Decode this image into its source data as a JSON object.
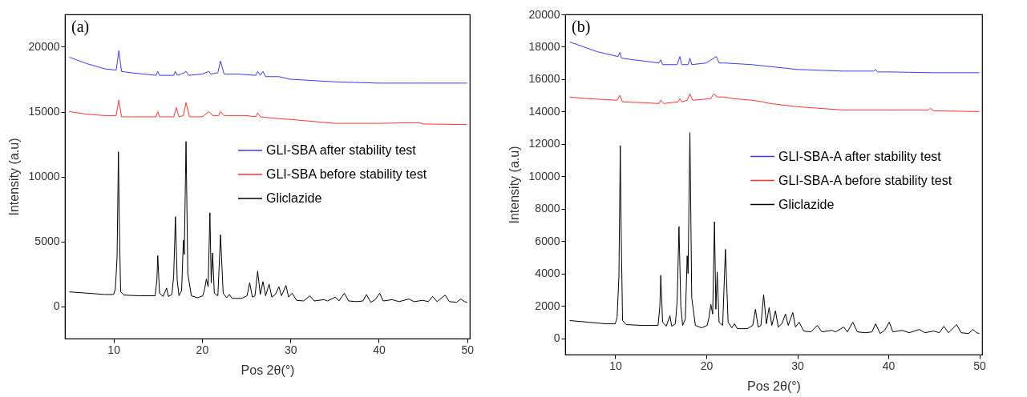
{
  "chart_data": [
    {
      "type": "line",
      "xlabel": "Pos 2θ(°)",
      "ylabel": "Intensity (a.u)",
      "xlim": [
        4.5,
        50.3
      ],
      "ylim": [
        -2500,
        22500
      ],
      "xticks": [
        10,
        20,
        30,
        40,
        50
      ],
      "yticks": [
        0,
        5000,
        10000,
        15000,
        20000
      ],
      "legend": "right",
      "annotations": [
        "(a)"
      ],
      "series": [
        {
          "name": "GLI-SBA after stability test",
          "color": "#3a3aff",
          "x": [
            5,
            7,
            9,
            10.3,
            10.6,
            10.9,
            12,
            14.8,
            15.0,
            15.2,
            16.8,
            17.0,
            17.2,
            18.0,
            18.2,
            18.5,
            20,
            20.8,
            21.0,
            21.8,
            22.1,
            22.5,
            24,
            26.1,
            26.3,
            26.6,
            26.9,
            27.2,
            28.7,
            30,
            35,
            40,
            45,
            50
          ],
          "values": [
            19200,
            18700,
            18300,
            18200,
            19700,
            18100,
            18000,
            17800,
            18100,
            17800,
            17800,
            18100,
            17800,
            18000,
            18100,
            17800,
            17900,
            18100,
            17900,
            18000,
            18900,
            17900,
            17900,
            17800,
            18100,
            17800,
            18100,
            17700,
            17700,
            17500,
            17300,
            17200,
            17200,
            17200
          ]
        },
        {
          "name": "GLI-SBA before stability test",
          "color": "#ff3333",
          "x": [
            5,
            7,
            9,
            10.3,
            10.6,
            10.9,
            12,
            14.8,
            15.0,
            15.2,
            16.8,
            17.1,
            17.4,
            17.9,
            18.2,
            18.6,
            20,
            20.8,
            21.2,
            21.9,
            22.1,
            22.5,
            25,
            26.1,
            26.3,
            26.6,
            28,
            30,
            35,
            40,
            44.6,
            45,
            50
          ],
          "values": [
            15000,
            14800,
            14700,
            14700,
            15900,
            14600,
            14600,
            14600,
            15000,
            14600,
            14600,
            15300,
            14600,
            14700,
            15700,
            14600,
            14600,
            15000,
            14700,
            14700,
            15000,
            14700,
            14700,
            14600,
            14900,
            14600,
            14500,
            14400,
            14100,
            14100,
            14150,
            14050,
            14000
          ]
        },
        {
          "name": "Gliclazide",
          "color": "#000000",
          "x": [
            5,
            7,
            9,
            10,
            10.2,
            10.4,
            10.55,
            10.65,
            10.8,
            11.2,
            13,
            14.7,
            14.9,
            15.0,
            15.2,
            15.6,
            16.0,
            16.2,
            16.6,
            16.8,
            17.0,
            17.2,
            17.4,
            17.7,
            17.9,
            18.0,
            18.2,
            18.4,
            18.8,
            19.5,
            20.1,
            20.3,
            20.5,
            20.7,
            20.9,
            21.05,
            21.2,
            21.4,
            21.8,
            22.1,
            22.4,
            22.8,
            23.1,
            23.4,
            24.5,
            25.1,
            25.4,
            25.7,
            26.0,
            26.3,
            26.6,
            26.9,
            27.2,
            27.6,
            27.9,
            28.3,
            28.7,
            29.0,
            29.5,
            29.8,
            30.2,
            30.7,
            31.5,
            32.2,
            32.7,
            33.8,
            34.2,
            35.1,
            35.5,
            36.1,
            36.6,
            37.5,
            38.2,
            38.6,
            39.1,
            39.6,
            40.1,
            40.5,
            41.5,
            42.3,
            43.4,
            44.0,
            45,
            45.6,
            46.1,
            46.6,
            47.5,
            48.0,
            48.8,
            49.3,
            49.7,
            50
          ],
          "values": [
            1100,
            1000,
            900,
            900,
            1300,
            3800,
            11900,
            6500,
            1100,
            850,
            800,
            800,
            2000,
            3900,
            1000,
            750,
            1400,
            750,
            900,
            2300,
            6900,
            2000,
            800,
            1200,
            5100,
            4000,
            12700,
            2500,
            800,
            650,
            800,
            1300,
            2100,
            1500,
            7200,
            1800,
            4100,
            1000,
            800,
            5500,
            1000,
            650,
            900,
            600,
            600,
            800,
            1800,
            700,
            800,
            2700,
            900,
            1900,
            800,
            1700,
            700,
            900,
            1500,
            800,
            1600,
            700,
            1000,
            450,
            400,
            800,
            400,
            500,
            400,
            700,
            400,
            1000,
            400,
            350,
            400,
            900,
            300,
            500,
            1000,
            400,
            500,
            350,
            550,
            350,
            450,
            350,
            750,
            350,
            850,
            350,
            300,
            550,
            350,
            300
          ]
        }
      ]
    },
    {
      "type": "line",
      "xlabel": "Pos 2θ(°)",
      "ylabel": "Intensity (a.u)",
      "xlim": [
        4.5,
        50.3
      ],
      "ylim": [
        -1000,
        20000
      ],
      "xticks": [
        10,
        20,
        30,
        40,
        50
      ],
      "yticks": [
        0,
        2000,
        4000,
        6000,
        8000,
        10000,
        12000,
        14000,
        16000,
        18000,
        20000
      ],
      "legend": "right",
      "annotations": [
        "(b)"
      ],
      "series": [
        {
          "name": "GLI-SBA-A after stability test",
          "color": "#3a3aff",
          "x": [
            5,
            6.5,
            8,
            10.3,
            10.5,
            10.7,
            12,
            14.8,
            15.0,
            15.2,
            16.8,
            17.1,
            17.3,
            18.0,
            18.2,
            18.4,
            20,
            21.1,
            21.4,
            22,
            25,
            30,
            35,
            38.4,
            38.6,
            38.8,
            40,
            45,
            50
          ],
          "values": [
            18300,
            18000,
            17700,
            17400,
            17650,
            17300,
            17200,
            17000,
            17200,
            16900,
            16900,
            17400,
            16900,
            16900,
            17300,
            16900,
            17000,
            17400,
            17000,
            17000,
            16900,
            16600,
            16500,
            16500,
            16600,
            16450,
            16450,
            16400,
            16400
          ]
        },
        {
          "name": "GLI-SBA-A before stability test",
          "color": "#ff3333",
          "x": [
            5,
            7,
            10.2,
            10.5,
            10.8,
            13,
            14.8,
            15.0,
            15.3,
            16.9,
            17.1,
            17.3,
            17.9,
            18.2,
            18.5,
            20.5,
            20.8,
            21.2,
            22,
            23,
            25,
            26.2,
            27,
            30,
            35,
            40,
            44.4,
            44.6,
            45,
            50
          ],
          "values": [
            14900,
            14800,
            14700,
            15000,
            14600,
            14550,
            14500,
            14700,
            14500,
            14600,
            14800,
            14600,
            14700,
            15100,
            14700,
            14800,
            15100,
            14900,
            14900,
            14800,
            14700,
            14600,
            14500,
            14300,
            14100,
            14100,
            14100,
            14200,
            14050,
            14000
          ]
        },
        {
          "name": "Gliclazide",
          "color": "#000000",
          "x": [
            5,
            7,
            9,
            10,
            10.2,
            10.4,
            10.55,
            10.65,
            10.8,
            11.2,
            13,
            14.7,
            14.9,
            15.0,
            15.2,
            15.6,
            16.0,
            16.2,
            16.6,
            16.8,
            17.0,
            17.2,
            17.4,
            17.7,
            17.9,
            18.0,
            18.2,
            18.4,
            18.8,
            19.5,
            20.1,
            20.3,
            20.5,
            20.7,
            20.9,
            21.05,
            21.2,
            21.4,
            21.8,
            22.1,
            22.4,
            22.8,
            23.1,
            23.4,
            24.5,
            25.1,
            25.4,
            25.7,
            26.0,
            26.3,
            26.6,
            26.9,
            27.2,
            27.6,
            27.9,
            28.3,
            28.7,
            29.0,
            29.5,
            29.8,
            30.2,
            30.7,
            31.5,
            32.2,
            32.7,
            33.8,
            34.2,
            35.1,
            35.5,
            36.1,
            36.6,
            37.5,
            38.2,
            38.6,
            39.1,
            39.6,
            40.1,
            40.5,
            41.5,
            42.3,
            43.4,
            44.0,
            45,
            45.6,
            46.1,
            46.6,
            47.5,
            48.0,
            48.8,
            49.3,
            49.7,
            50
          ],
          "values": [
            1100,
            1000,
            900,
            900,
            1300,
            3800,
            11900,
            6500,
            1100,
            850,
            800,
            800,
            2000,
            3900,
            1000,
            750,
            1400,
            750,
            900,
            2300,
            6900,
            2000,
            800,
            1200,
            5100,
            4000,
            12700,
            2500,
            800,
            650,
            800,
            1300,
            2100,
            1500,
            7200,
            1800,
            4100,
            1000,
            800,
            5500,
            1000,
            650,
            900,
            600,
            600,
            800,
            1800,
            700,
            800,
            2700,
            900,
            1900,
            800,
            1700,
            700,
            900,
            1500,
            800,
            1600,
            700,
            1000,
            450,
            400,
            800,
            400,
            500,
            400,
            700,
            400,
            1000,
            400,
            350,
            400,
            900,
            300,
            500,
            1000,
            400,
            500,
            350,
            550,
            350,
            450,
            350,
            750,
            350,
            850,
            350,
            300,
            550,
            350,
            300
          ]
        }
      ]
    }
  ]
}
